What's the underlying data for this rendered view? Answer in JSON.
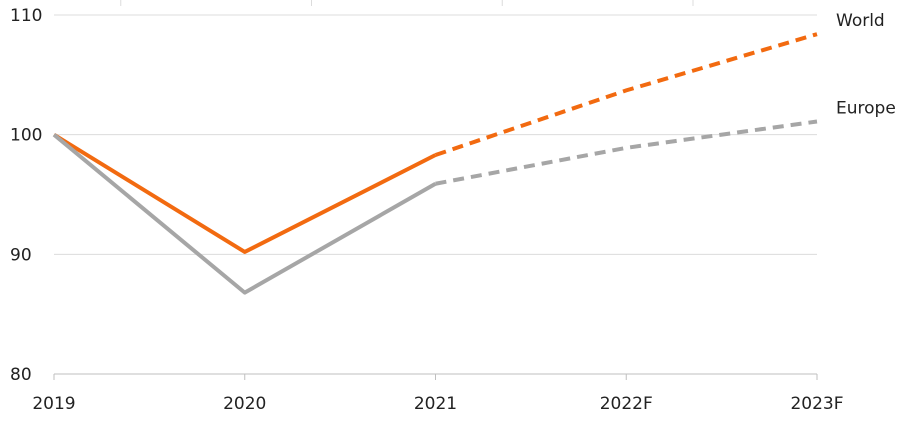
{
  "chart_data": {
    "type": "line",
    "title": "",
    "xlabel": "",
    "ylabel": "",
    "categories": [
      "2019",
      "2020",
      "2021",
      "2022F",
      "2023F"
    ],
    "ylim": [
      80,
      110
    ],
    "yticks": [
      "80",
      "90",
      "100",
      "110"
    ],
    "grid": "horizontal",
    "legend": "direct labels at line ends (right)",
    "forecast_style": "dashed from 2021 onward",
    "series": [
      {
        "name": "World",
        "color": "#f26a10",
        "values": [
          100,
          90.2,
          98.3,
          103.7,
          108.4
        ]
      },
      {
        "name": "Europe",
        "color": "#a6a6a6",
        "values": [
          100,
          86.8,
          95.9,
          98.9,
          101.1
        ]
      }
    ]
  }
}
